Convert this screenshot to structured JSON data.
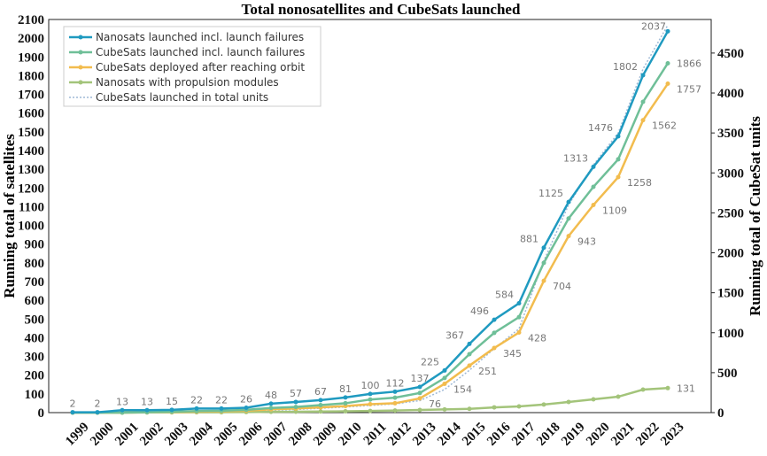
{
  "chart_data": {
    "type": "line",
    "title": "Total nonosatellites and CubeSats launched",
    "ylabel": "Running total of satellites",
    "y2label": "Running total of CubeSat units",
    "ylim": [
      0,
      2100
    ],
    "y2lim": [
      0,
      4920
    ],
    "yticks": [
      0,
      100,
      200,
      300,
      400,
      500,
      600,
      700,
      800,
      900,
      1000,
      1100,
      1200,
      1300,
      1400,
      1500,
      1600,
      1700,
      1800,
      1900,
      2000,
      2100
    ],
    "y2ticks": [
      0,
      500,
      1000,
      1500,
      2000,
      2500,
      3000,
      3500,
      4000,
      4500
    ],
    "x": [
      "1999",
      "2000",
      "2001",
      "2002",
      "2003",
      "2004",
      "2005",
      "2006",
      "2007",
      "2008",
      "2009",
      "2010",
      "2011",
      "2012",
      "2013",
      "2014",
      "2015",
      "2016",
      "2017",
      "2018",
      "2019",
      "2020",
      "2021",
      "2022",
      "2023"
    ],
    "legend_position": "top-left",
    "series": [
      {
        "name": "Nanosats launched incl. launch failures",
        "color": "#1f9ac0",
        "axis": "left",
        "style": "solid",
        "values": [
          2,
          2,
          13,
          13,
          15,
          22,
          22,
          26,
          48,
          57,
          67,
          81,
          100,
          112,
          137,
          225,
          367,
          496,
          584,
          881,
          1125,
          1313,
          1476,
          1802,
          2037
        ],
        "labels": [
          "2",
          "2",
          "13",
          "13",
          "15",
          "22",
          "22",
          "26",
          "48",
          "57",
          "67",
          "81",
          "100",
          "112",
          "137",
          "225",
          "367",
          "496",
          "584",
          "881",
          "1125",
          "1313",
          "1476",
          "1802",
          "2037"
        ]
      },
      {
        "name": "CubeSats launched incl. launch failures",
        "color": "#6fbf98",
        "axis": "left",
        "style": "solid",
        "values": [
          0,
          0,
          0,
          2,
          5,
          8,
          10,
          15,
          25,
          30,
          40,
          50,
          70,
          80,
          105,
          185,
          312,
          426,
          510,
          800,
          1037,
          1206,
          1353,
          1660,
          1866
        ],
        "labels": [
          "",
          "",
          "",
          "",
          "",
          "",
          "",
          "",
          "",
          "",
          "",
          "",
          "",
          "",
          "",
          "",
          "",
          "",
          "",
          "",
          "",
          "",
          "",
          "",
          "1866"
        ]
      },
      {
        "name": "CubeSats deployed after reaching orbit",
        "color": "#f2bc4e",
        "axis": "left",
        "style": "solid",
        "values": [
          0,
          0,
          0,
          1,
          3,
          5,
          7,
          10,
          18,
          22,
          28,
          35,
          45,
          50,
          76,
          154,
          251,
          345,
          428,
          704,
          943,
          1109,
          1258,
          1562,
          1757
        ],
        "labels": [
          "",
          "",
          "",
          "",
          "",
          "",
          "",
          "",
          "",
          "",
          "",
          "",
          "",
          "",
          "76",
          "154",
          "251",
          "345",
          "428",
          "704",
          "943",
          "1109",
          "1258",
          "1562",
          "1757"
        ]
      },
      {
        "name": "Nanosats with propulsion modules",
        "color": "#a3c47a",
        "axis": "left",
        "style": "solid",
        "values": [
          0,
          0,
          0,
          1,
          1,
          2,
          2,
          3,
          4,
          5,
          6,
          7,
          9,
          11,
          14,
          17,
          20,
          28,
          33,
          43,
          57,
          71,
          85,
          123,
          131
        ],
        "labels": [
          "",
          "",
          "",
          "",
          "",
          "",
          "",
          "",
          "",
          "",
          "",
          "",
          "",
          "",
          "",
          "",
          "",
          "",
          "",
          "",
          "",
          "",
          "",
          "",
          "131"
        ]
      },
      {
        "name": "CubeSats launched in total units",
        "color": "#9fb9d6",
        "axis": "right",
        "style": "dotted",
        "values": [
          0,
          0,
          0,
          2,
          5,
          10,
          15,
          20,
          30,
          40,
          55,
          70,
          90,
          110,
          150,
          290,
          530,
          800,
          1050,
          1900,
          2600,
          3100,
          3500,
          4300,
          4850
        ],
        "labels": []
      }
    ]
  }
}
